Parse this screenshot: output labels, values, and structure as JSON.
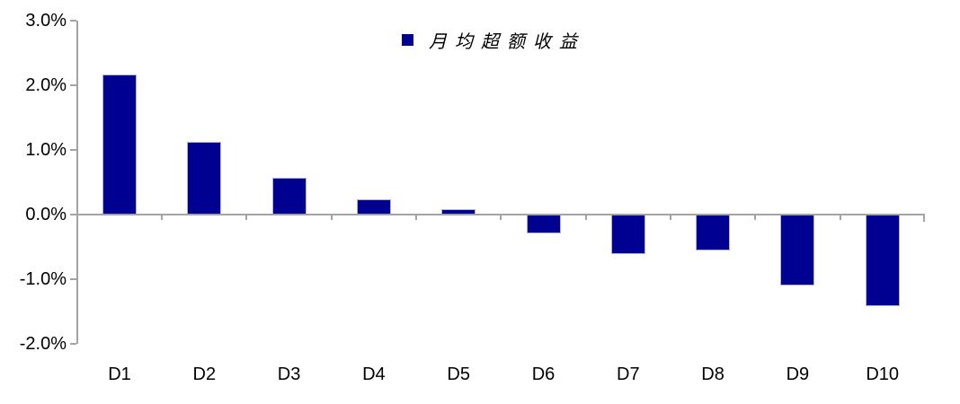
{
  "chart_data": {
    "type": "bar",
    "title": "",
    "xlabel": "",
    "ylabel": "",
    "categories": [
      "D1",
      "D2",
      "D3",
      "D4",
      "D5",
      "D6",
      "D7",
      "D8",
      "D9",
      "D10"
    ],
    "series": [
      {
        "name": "月均超额收益",
        "values": [
          2.16,
          1.13,
          0.57,
          0.24,
          0.09,
          -0.29,
          -0.61,
          -0.56,
          -1.1,
          -1.41
        ]
      }
    ],
    "ylim": [
      -2.0,
      3.0
    ],
    "yticks": {
      "labels": [
        "3.0%",
        "2.0%",
        "1.0%",
        "0.0%",
        "-1.0%",
        "-2.0%"
      ],
      "values": [
        3,
        2,
        1,
        0,
        -1,
        -2
      ]
    },
    "grid": false,
    "legend_position": "top-center",
    "colors": {
      "bar": "#000091",
      "bar_border": "#b3b3cc",
      "axis": "#a3a3a3",
      "text": "#000000"
    }
  }
}
